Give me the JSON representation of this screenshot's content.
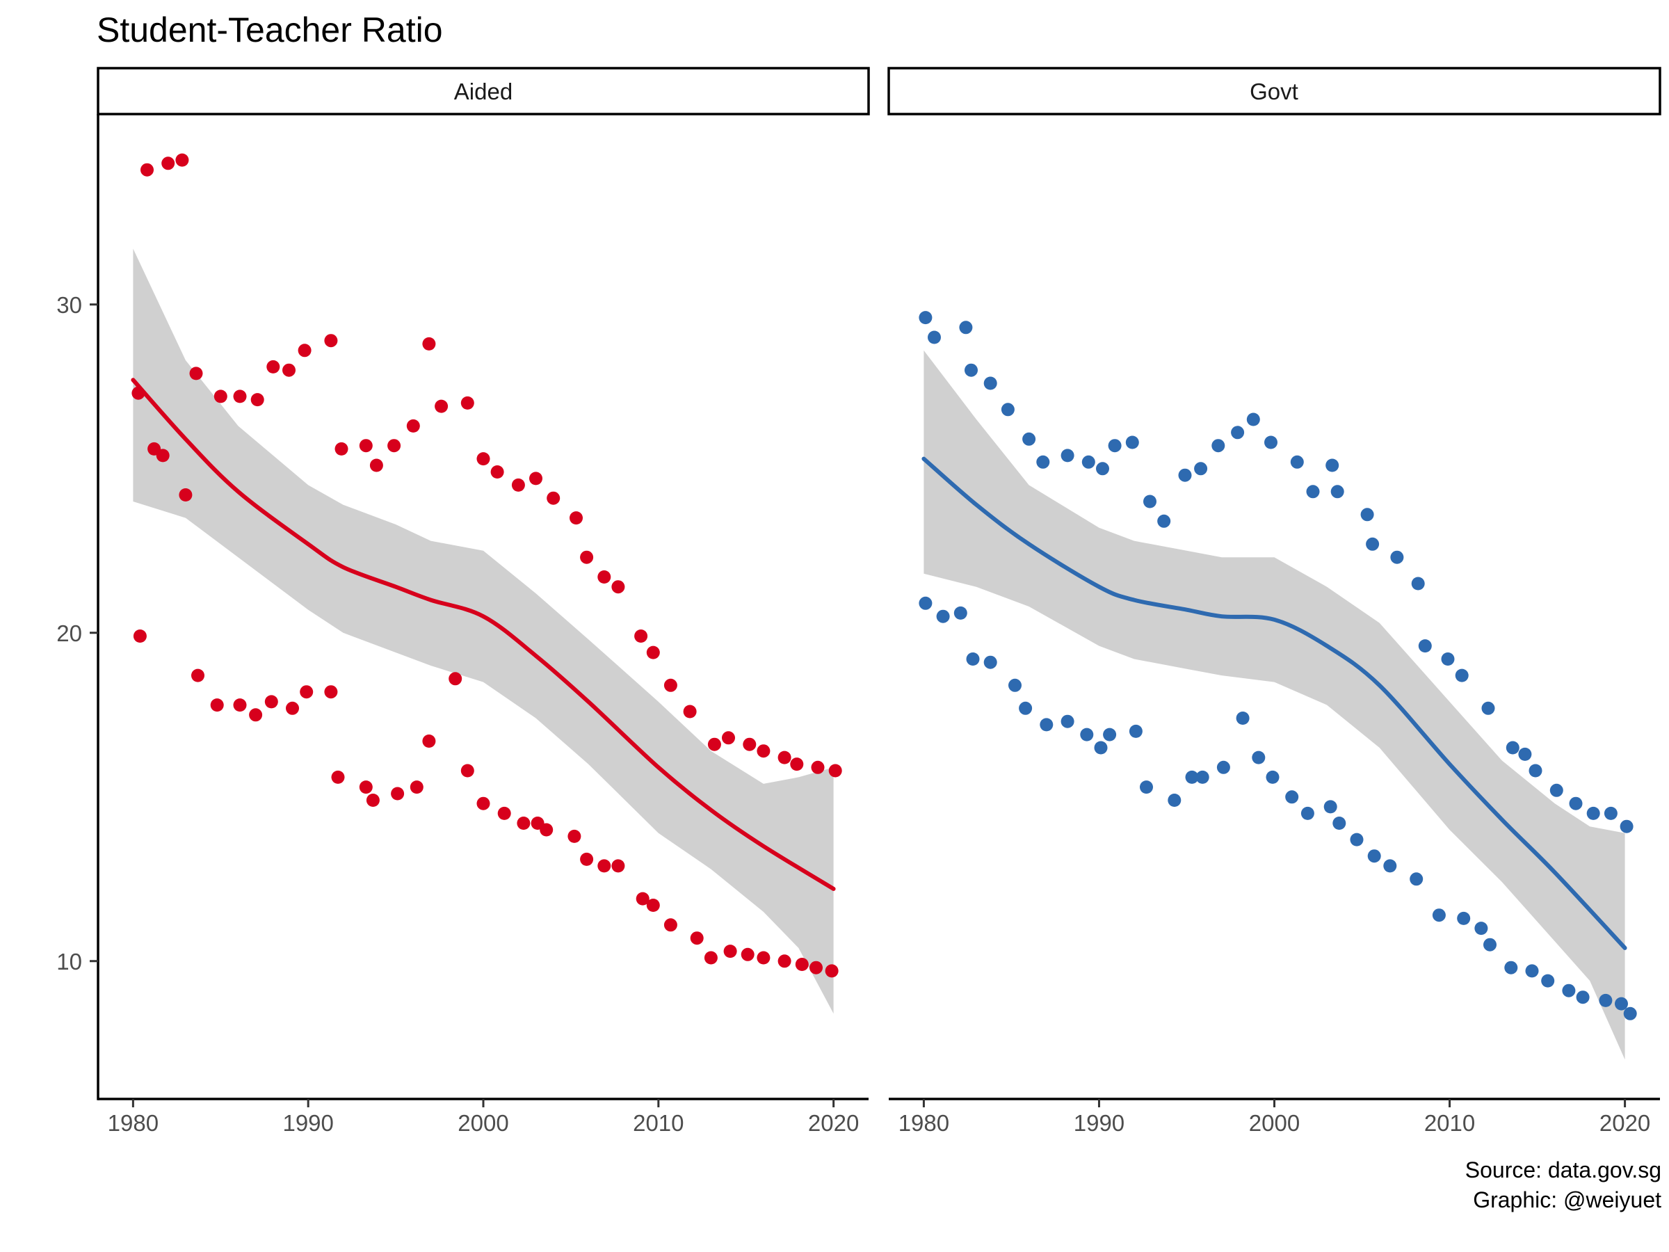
{
  "title": "Student-Teacher Ratio",
  "caption": [
    "Source: data.gov.sg",
    "Graphic: @weiyuet"
  ],
  "chart_data": {
    "type": "scatter",
    "title": "Student-Teacher Ratio",
    "xlabel": "",
    "ylabel": "",
    "xlim": [
      1978,
      2022
    ],
    "ylim": [
      5.8,
      35.8
    ],
    "xticks": [
      1980,
      1990,
      2000,
      2010,
      2020
    ],
    "yticks": [
      10,
      20,
      30
    ],
    "grid": false,
    "legend": "none",
    "smoother": "loess with grey confidence band",
    "panels": [
      {
        "name": "Aided",
        "color": "#d7001c",
        "points": [
          [
            1980.3,
            27.3
          ],
          [
            1980.8,
            34.1
          ],
          [
            1981.2,
            25.6
          ],
          [
            1981.7,
            25.4
          ],
          [
            1982,
            34.3
          ],
          [
            1982.8,
            34.4
          ],
          [
            1983,
            24.2
          ],
          [
            1983.6,
            27.9
          ],
          [
            1985,
            27.2
          ],
          [
            1986.1,
            27.2
          ],
          [
            1987.1,
            27.1
          ],
          [
            1988,
            28.1
          ],
          [
            1988.9,
            28
          ],
          [
            1989.8,
            28.6
          ],
          [
            1991.3,
            28.9
          ],
          [
            1991.9,
            25.6
          ],
          [
            1993.3,
            25.7
          ],
          [
            1993.9,
            25.1
          ],
          [
            1994.9,
            25.7
          ],
          [
            1996,
            26.3
          ],
          [
            1996.9,
            28.8
          ],
          [
            1997.6,
            26.9
          ],
          [
            1999.1,
            27
          ],
          [
            2000,
            25.3
          ],
          [
            2000.8,
            24.9
          ],
          [
            2002,
            24.5
          ],
          [
            2003,
            24.7
          ],
          [
            2004,
            24.1
          ],
          [
            2005.3,
            23.5
          ],
          [
            2005.9,
            22.3
          ],
          [
            2006.9,
            21.7
          ],
          [
            2007.7,
            21.4
          ],
          [
            2009,
            19.9
          ],
          [
            2009.7,
            19.4
          ],
          [
            2010.7,
            18.4
          ],
          [
            2011.8,
            17.6
          ],
          [
            2013.2,
            16.6
          ],
          [
            2014,
            16.8
          ],
          [
            2015.2,
            16.6
          ],
          [
            2016,
            16.4
          ],
          [
            2017.2,
            16.2
          ],
          [
            2017.9,
            16
          ],
          [
            2019.1,
            15.9
          ],
          [
            2020.1,
            15.8
          ],
          [
            1980.4,
            19.9
          ],
          [
            1983.7,
            18.7
          ],
          [
            1984.8,
            17.8
          ],
          [
            1986.1,
            17.8
          ],
          [
            1987,
            17.5
          ],
          [
            1987.9,
            17.9
          ],
          [
            1989.1,
            17.7
          ],
          [
            1989.9,
            18.2
          ],
          [
            1991.3,
            18.2
          ],
          [
            1991.7,
            15.6
          ],
          [
            1993.3,
            15.3
          ],
          [
            1993.7,
            14.9
          ],
          [
            1995.1,
            15.1
          ],
          [
            1996.2,
            15.3
          ],
          [
            1996.9,
            16.7
          ],
          [
            1998.4,
            18.6
          ],
          [
            1999.1,
            15.8
          ],
          [
            2000,
            14.8
          ],
          [
            2001.2,
            14.5
          ],
          [
            2002.3,
            14.2
          ],
          [
            2003.1,
            14.2
          ],
          [
            2003.6,
            14
          ],
          [
            2005.2,
            13.8
          ],
          [
            2005.9,
            13.1
          ],
          [
            2006.9,
            12.9
          ],
          [
            2007.7,
            12.9
          ],
          [
            2009.1,
            11.9
          ],
          [
            2009.7,
            11.7
          ],
          [
            2010.7,
            11.1
          ],
          [
            2012.2,
            10.7
          ],
          [
            2013,
            10.1
          ],
          [
            2014.1,
            10.3
          ],
          [
            2015.1,
            10.2
          ],
          [
            2016,
            10.1
          ],
          [
            2017.2,
            10
          ],
          [
            2018.2,
            9.9
          ],
          [
            2019,
            9.8
          ],
          [
            2019.9,
            9.7
          ]
        ],
        "fit": [
          [
            1980,
            27.7
          ],
          [
            1983,
            25.9
          ],
          [
            1986,
            24.3
          ],
          [
            1990,
            22.7
          ],
          [
            1992,
            22
          ],
          [
            1995,
            21.4
          ],
          [
            1997,
            21
          ],
          [
            2000,
            20.5
          ],
          [
            2003,
            19.3
          ],
          [
            2006,
            17.9
          ],
          [
            2010,
            15.9
          ],
          [
            2013,
            14.6
          ],
          [
            2016,
            13.5
          ],
          [
            2020,
            12.2
          ]
        ],
        "band_upper": [
          [
            1980,
            31.7
          ],
          [
            1983,
            28.3
          ],
          [
            1986,
            26.3
          ],
          [
            1990,
            24.5
          ],
          [
            1992,
            23.9
          ],
          [
            1995,
            23.3
          ],
          [
            1997,
            22.8
          ],
          [
            2000,
            22.5
          ],
          [
            2003,
            21.2
          ],
          [
            2006,
            19.8
          ],
          [
            2010,
            17.9
          ],
          [
            2013,
            16.4
          ],
          [
            2016,
            15.4
          ],
          [
            2018,
            15.6
          ],
          [
            2020,
            15.9
          ]
        ],
        "band_lower": [
          [
            1980,
            24
          ],
          [
            1983,
            23.5
          ],
          [
            1986,
            22.3
          ],
          [
            1990,
            20.7
          ],
          [
            1992,
            20
          ],
          [
            1995,
            19.4
          ],
          [
            1997,
            19
          ],
          [
            2000,
            18.5
          ],
          [
            2003,
            17.4
          ],
          [
            2006,
            16
          ],
          [
            2010,
            13.9
          ],
          [
            2013,
            12.8
          ],
          [
            2016,
            11.5
          ],
          [
            2018,
            10.4
          ],
          [
            2020,
            8.4
          ]
        ]
      },
      {
        "name": "Govt",
        "color": "#2e6ab0",
        "points": [
          [
            1980.1,
            29.6
          ],
          [
            1980.6,
            29
          ],
          [
            1982.4,
            29.3
          ],
          [
            1982.7,
            28
          ],
          [
            1983.8,
            27.6
          ],
          [
            1984.8,
            26.8
          ],
          [
            1986,
            25.9
          ],
          [
            1986.8,
            25.2
          ],
          [
            1988.2,
            25.4
          ],
          [
            1989.4,
            25.2
          ],
          [
            1990.2,
            25
          ],
          [
            1990.9,
            25.7
          ],
          [
            1991.9,
            25.8
          ],
          [
            1992.9,
            24
          ],
          [
            1993.7,
            23.4
          ],
          [
            1994.9,
            24.8
          ],
          [
            1995.8,
            25
          ],
          [
            1996.8,
            25.7
          ],
          [
            1997.9,
            26.1
          ],
          [
            1998.8,
            26.5
          ],
          [
            1999.8,
            25.8
          ],
          [
            2001.3,
            25.2
          ],
          [
            2002.2,
            24.3
          ],
          [
            2003.3,
            25.1
          ],
          [
            2003.6,
            24.3
          ],
          [
            2005.3,
            23.6
          ],
          [
            2005.6,
            22.7
          ],
          [
            2007,
            22.3
          ],
          [
            2008.2,
            21.5
          ],
          [
            2008.6,
            19.6
          ],
          [
            2009.9,
            19.2
          ],
          [
            2010.7,
            18.7
          ],
          [
            2012.2,
            17.7
          ],
          [
            2013.6,
            16.5
          ],
          [
            2014.3,
            16.3
          ],
          [
            2014.9,
            15.8
          ],
          [
            2016.1,
            15.2
          ],
          [
            2017.2,
            14.8
          ],
          [
            2018.2,
            14.5
          ],
          [
            2019.2,
            14.5
          ],
          [
            2020.1,
            14.1
          ],
          [
            1980.1,
            20.9
          ],
          [
            1981.1,
            20.5
          ],
          [
            1982.1,
            20.6
          ],
          [
            1982.8,
            19.2
          ],
          [
            1983.8,
            19.1
          ],
          [
            1985.2,
            18.4
          ],
          [
            1985.8,
            17.7
          ],
          [
            1987,
            17.2
          ],
          [
            1988.2,
            17.3
          ],
          [
            1989.3,
            16.9
          ],
          [
            1990.1,
            16.5
          ],
          [
            1990.6,
            16.9
          ],
          [
            1992.1,
            17
          ],
          [
            1992.7,
            15.3
          ],
          [
            1994.3,
            14.9
          ],
          [
            1995.3,
            15.6
          ],
          [
            1995.9,
            15.6
          ],
          [
            1997.1,
            15.9
          ],
          [
            1998.2,
            17.4
          ],
          [
            1999.1,
            16.2
          ],
          [
            1999.9,
            15.6
          ],
          [
            2001,
            15
          ],
          [
            2001.9,
            14.5
          ],
          [
            2003.2,
            14.7
          ],
          [
            2003.7,
            14.2
          ],
          [
            2004.7,
            13.7
          ],
          [
            2005.7,
            13.2
          ],
          [
            2006.6,
            12.9
          ],
          [
            2008.1,
            12.5
          ],
          [
            2009.4,
            11.4
          ],
          [
            2010.8,
            11.3
          ],
          [
            2011.8,
            11
          ],
          [
            2012.3,
            10.5
          ],
          [
            2013.5,
            9.8
          ],
          [
            2014.7,
            9.7
          ],
          [
            2015.6,
            9.4
          ],
          [
            2016.8,
            9.1
          ],
          [
            2017.6,
            8.9
          ],
          [
            2018.9,
            8.8
          ],
          [
            2019.8,
            8.7
          ],
          [
            2020.3,
            8.4
          ]
        ],
        "fit": [
          [
            1980,
            25.3
          ],
          [
            1983,
            23.9
          ],
          [
            1986,
            22.7
          ],
          [
            1990,
            21.4
          ],
          [
            1992,
            21
          ],
          [
            1995,
            20.7
          ],
          [
            1997,
            20.5
          ],
          [
            2000,
            20.4
          ],
          [
            2003,
            19.6
          ],
          [
            2006,
            18.4
          ],
          [
            2010,
            16
          ],
          [
            2013,
            14.3
          ],
          [
            2016,
            12.7
          ],
          [
            2020,
            10.4
          ]
        ],
        "band_upper": [
          [
            1980,
            28.6
          ],
          [
            1983,
            26.5
          ],
          [
            1986,
            24.5
          ],
          [
            1990,
            23.2
          ],
          [
            1992,
            22.8
          ],
          [
            1995,
            22.5
          ],
          [
            1997,
            22.3
          ],
          [
            2000,
            22.3
          ],
          [
            2003,
            21.4
          ],
          [
            2006,
            20.3
          ],
          [
            2010,
            17.9
          ],
          [
            2013,
            16.1
          ],
          [
            2016,
            14.8
          ],
          [
            2018,
            14.1
          ],
          [
            2020,
            13.9
          ]
        ],
        "band_lower": [
          [
            1980,
            21.8
          ],
          [
            1983,
            21.4
          ],
          [
            1986,
            20.8
          ],
          [
            1990,
            19.6
          ],
          [
            1992,
            19.2
          ],
          [
            1995,
            18.9
          ],
          [
            1997,
            18.7
          ],
          [
            2000,
            18.5
          ],
          [
            2003,
            17.8
          ],
          [
            2006,
            16.5
          ],
          [
            2010,
            14
          ],
          [
            2013,
            12.4
          ],
          [
            2016,
            10.6
          ],
          [
            2018,
            9.4
          ],
          [
            2020,
            7
          ]
        ]
      }
    ]
  }
}
